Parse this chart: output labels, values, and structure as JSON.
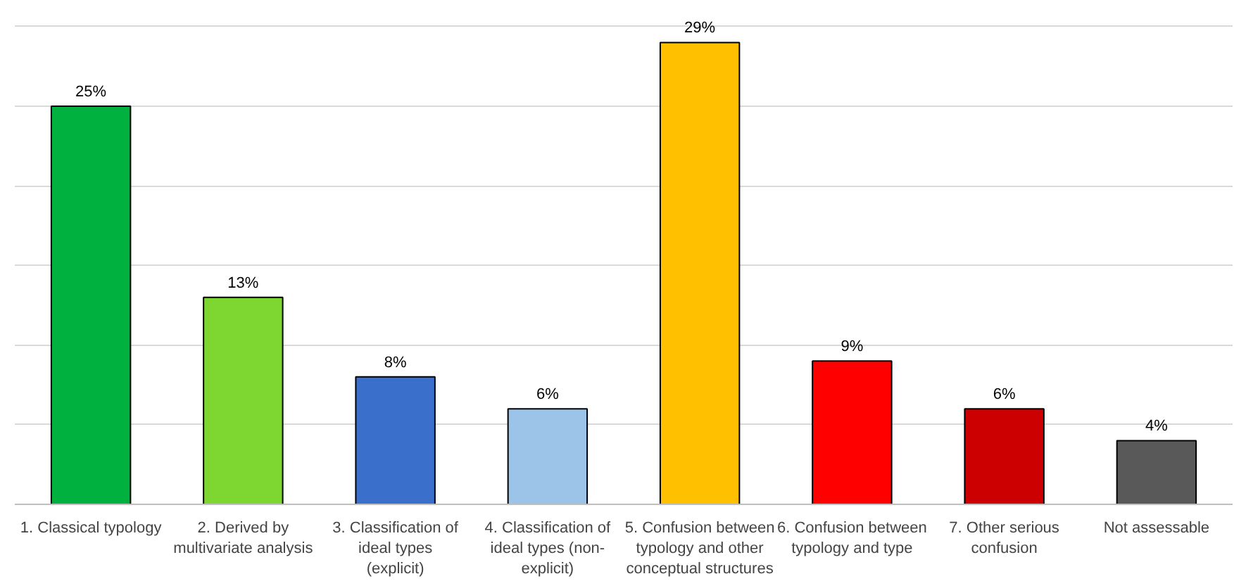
{
  "chart_data": {
    "type": "bar",
    "categories": [
      "1. Classical typology",
      "2. Derived by multivariate analysis",
      "3. Classification of ideal types (explicit)",
      "4. Classification of ideal types (non-explicit)",
      "5. Confusion between typology and other conceptual structures",
      "6. Confusion between typology and type",
      "7. Other serious confusion",
      "Not assessable"
    ],
    "values": [
      25,
      13,
      8,
      6,
      29,
      9,
      6,
      4
    ],
    "value_labels": [
      "25%",
      "13%",
      "8%",
      "6%",
      "29%",
      "9%",
      "6%",
      "4%"
    ],
    "colors": [
      "#00b140",
      "#7ed631",
      "#3a70cc",
      "#9bc4e8",
      "#ffc000",
      "#ff0000",
      "#cc0000",
      "#595959"
    ],
    "grid": "y",
    "tick_labels": "x"
  }
}
